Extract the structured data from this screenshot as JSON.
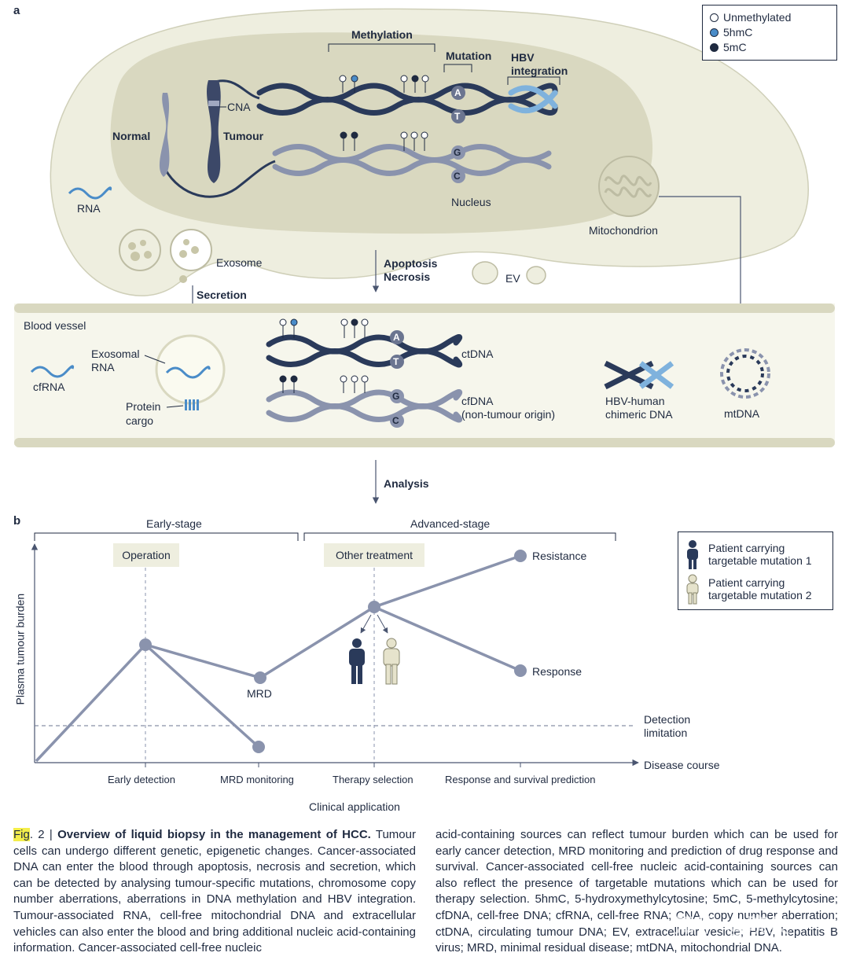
{
  "panel_a": {
    "label": "a",
    "legend": [
      {
        "label": "Unmethylated",
        "color": "#ffffff"
      },
      {
        "label": "5hmC",
        "color": "#4a8cc8"
      },
      {
        "label": "5mC",
        "color": "#1f2a40"
      }
    ],
    "methylation": "Methylation",
    "mutation": "Mutation",
    "hbv_integration_1": "HBV",
    "hbv_integration_2": "integration",
    "cna": "CNA",
    "normal": "Normal",
    "tumour": "Tumour",
    "base_a": "A",
    "base_t": "T",
    "base_g": "G",
    "base_c": "C",
    "nucleus": "Nucleus",
    "rna": "RNA",
    "mitochondrion": "Mitochondrion",
    "exosome": "Exosome",
    "apoptosis": "Apoptosis",
    "necrosis": "Necrosis",
    "ev": "EV",
    "secretion": "Secretion",
    "blood_vessel": "Blood vessel",
    "exosomal_rna_1": "Exosomal",
    "exosomal_rna_2": "RNA",
    "cfrna": "cfRNA",
    "protein_cargo_1": "Protein",
    "protein_cargo_2": "cargo",
    "ctdna": "ctDNA",
    "cfdna_1": "cfDNA",
    "cfdna_2": "(non-tumour origin)",
    "hbv_human_1": "HBV-human",
    "hbv_human_2": "chimeric DNA",
    "mtdna": "mtDNA",
    "analysis": "Analysis"
  },
  "panel_b": {
    "label": "b",
    "early_stage": "Early-stage",
    "advanced_stage": "Advanced-stage",
    "operation": "Operation",
    "other_treatment": "Other treatment",
    "ylabel": "Plasma tumour burden",
    "xlabel": "Disease course",
    "detection_limitation_1": "Detection",
    "detection_limitation_2": "limitation",
    "resistance": "Resistance",
    "response": "Response",
    "mrd": "MRD",
    "ticks": [
      "Early detection",
      "MRD monitoring",
      "Therapy selection",
      "Response and survival prediction"
    ],
    "clinical_application": "Clinical application",
    "legend": [
      {
        "label_1": "Patient carrying",
        "label_2": "targetable mutation 1",
        "color": "#2a3a5a"
      },
      {
        "label_1": "Patient carrying",
        "label_2": "targetable mutation 2",
        "color": "#e6e3cc"
      }
    ]
  },
  "caption": {
    "fig": "Fig",
    "num": ". 2 | ",
    "title": "Overview of liquid biopsy in the management of HCC.",
    "col1_body": " Tumour cells can undergo different genetic, epigenetic changes. Cancer-associated DNA can enter the blood through apoptosis, necrosis and secretion, which can be detected by analysing tumour-specific mutations, chromosome copy number aberrations, aberrations in DNA methylation and HBV integration. Tumour-associated RNA, cell-free mitochondrial DNA and extracellular vehicles can also enter the blood and bring additional nucleic acid-containing information. Cancer-associated cell-free nucleic",
    "col2": "acid-containing sources can reflect tumour burden which can be used for early cancer detection, MRD monitoring and prediction of drug response and survival. Cancer-associated cell-free nucleic acid-containing sources can also reflect the presence of targetable mutations which can be used for therapy selection. 5hmC, 5-hydroxymethylcytosine; 5mC, 5-methylcytosine; cfDNA, cell-free DNA; cfRNA, cell-free RNA; CNA, copy number aberration; ctDNA, circulating tumour DNA; EV, extracellular vesicle; HBV, hepatitis B virus; MRD, minimal residual disease; mtDNA, mitochondrial DNA."
  },
  "watermark": "知乎 @晓炎",
  "chart_data": {
    "type": "line",
    "ylabel": "Plasma tumour burden",
    "xlabel": "Disease course",
    "categories": [
      "Early detection",
      "MRD monitoring",
      "Therapy selection",
      "Response and survival prediction"
    ]
  }
}
